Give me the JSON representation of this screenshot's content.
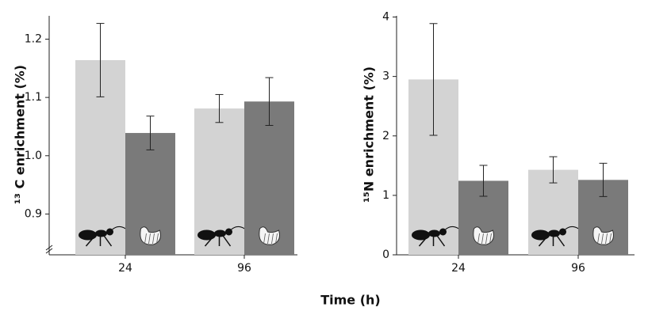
{
  "xlabel": "Time (h)",
  "chart_data": [
    {
      "type": "bar",
      "ylabel": "¹³ C enrichment (%)",
      "categories": [
        "24",
        "96"
      ],
      "series": [
        {
          "color": "#d3d3d3",
          "values": [
            1.164,
            1.081
          ],
          "errors": [
            0.063,
            0.024
          ]
        },
        {
          "color": "#7a7a7a",
          "values": [
            1.039,
            1.093
          ],
          "errors": [
            0.029,
            0.041
          ]
        }
      ],
      "ylim": [
        0.83,
        1.24
      ],
      "yticks": [
        0.9,
        {
          "value": 1,
          "label": "1.0"
        },
        1.1,
        1.2
      ],
      "axis_break": true
    },
    {
      "type": "bar",
      "ylabel": "¹⁵N enrichment (%)",
      "categories": [
        "24",
        "96"
      ],
      "series": [
        {
          "color": "#d3d3d3",
          "values": [
            2.95,
            1.43
          ],
          "errors": [
            0.94,
            0.22
          ]
        },
        {
          "color": "#7a7a7a",
          "values": [
            1.245,
            1.26
          ],
          "errors": [
            0.26,
            0.28
          ]
        }
      ],
      "ylim": [
        0,
        4.02
      ],
      "yticks": [
        0,
        1,
        2,
        3,
        4
      ],
      "axis_break": false
    }
  ]
}
